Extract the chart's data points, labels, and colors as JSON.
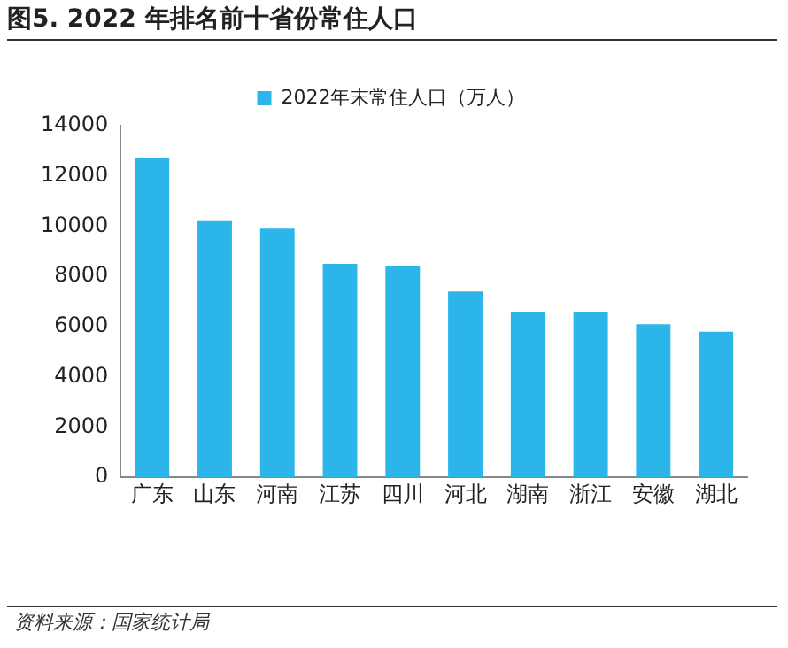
{
  "chart_data": {
    "type": "bar",
    "title": "图5. 2022 年排名前十省份常住人口",
    "categories": [
      "广东",
      "山东",
      "河南",
      "江苏",
      "四川",
      "河北",
      "湖南",
      "浙江",
      "安徽",
      "湖北"
    ],
    "series": [
      {
        "name": "2022年末常住人口（万人）",
        "color": "#2bb5e8",
        "values": [
          12700,
          10200,
          9900,
          8500,
          8400,
          7400,
          6600,
          6600,
          6100,
          5800
        ]
      }
    ],
    "ylim": [
      0,
      14000
    ],
    "yticks": [
      0,
      2000,
      4000,
      6000,
      8000,
      10000,
      12000,
      14000
    ],
    "grid": false,
    "legend": "top",
    "annotations": [
      "资料来源：国家统计局"
    ]
  }
}
